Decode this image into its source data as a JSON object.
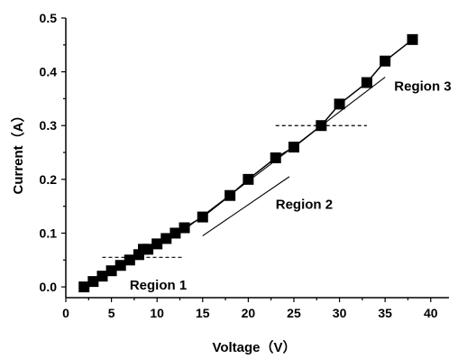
{
  "chart_data": {
    "type": "line",
    "title": "",
    "xlabel": "Voltage（V）",
    "ylabel": "Current（A）",
    "xlim": [
      0,
      42
    ],
    "ylim": [
      -0.02,
      0.5
    ],
    "x_ticks": [
      0,
      5,
      10,
      15,
      20,
      25,
      30,
      35,
      40
    ],
    "y_ticks": [
      0.0,
      0.1,
      0.2,
      0.3,
      0.4,
      0.5
    ],
    "x_tick_labels": [
      "0",
      "5",
      "10",
      "15",
      "20",
      "25",
      "30",
      "35",
      "40"
    ],
    "y_tick_labels": [
      "0.0",
      "0.1",
      "0.2",
      "0.3",
      "0.4",
      "0.5"
    ],
    "series": [
      {
        "marker": "square",
        "color": "#000000",
        "x": [
          2,
          3,
          4,
          5,
          6,
          7,
          8,
          8.5,
          9,
          10,
          11,
          12,
          13,
          15,
          18,
          20,
          23,
          25,
          28,
          30,
          33,
          35,
          38
        ],
        "y": [
          0.0,
          0.01,
          0.02,
          0.03,
          0.04,
          0.05,
          0.06,
          0.07,
          0.07,
          0.08,
          0.09,
          0.1,
          0.11,
          0.13,
          0.17,
          0.2,
          0.24,
          0.26,
          0.3,
          0.34,
          0.38,
          0.42,
          0.46
        ]
      }
    ],
    "fit_lines": [
      {
        "x": [
          15,
          24.5
        ],
        "y": [
          0.095,
          0.205
        ]
      },
      {
        "x": [
          12.5,
          35
        ],
        "y": [
          0.1,
          0.39
        ]
      }
    ],
    "threshold_lines": [
      {
        "x": [
          4,
          13
        ],
        "y": 0.055
      },
      {
        "x": [
          23,
          33
        ],
        "y": 0.3
      }
    ],
    "annotations": [
      {
        "text": "Region 1",
        "x": 7,
        "y": -0.005
      },
      {
        "text": "Region 2",
        "x": 23,
        "y": 0.145
      },
      {
        "text": "Region 3",
        "x": 36,
        "y": 0.365
      }
    ]
  }
}
